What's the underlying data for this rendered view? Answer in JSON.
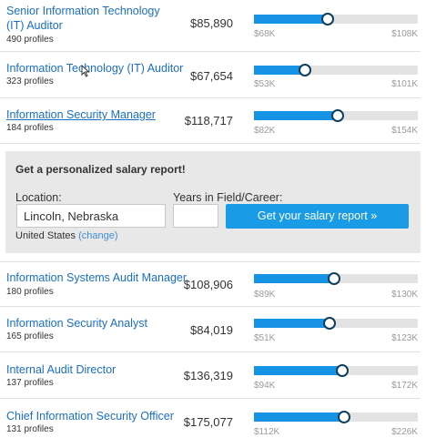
{
  "jobs_top": [
    {
      "title": "Senior Information Technology (IT) Auditor",
      "profiles": "490 profiles",
      "salary": "$85,890",
      "min": "$68K",
      "max": "$108K",
      "level": 0.45
    },
    {
      "title": "Information Technology (IT) Auditor",
      "profiles": "323 profiles",
      "salary": "$67,654",
      "min": "$53K",
      "max": "$101K",
      "level": 0.31
    },
    {
      "title": "Information Security Manager",
      "profiles": "184 profiles",
      "salary": "$118,717",
      "min": "$82K",
      "max": "$154K",
      "level": 0.51
    }
  ],
  "report": {
    "title": "Get a personalized salary report!",
    "location_label": "Location:",
    "location_value": "Lincoln, Nebraska",
    "years_label": "Years in Field/Career:",
    "years_value": "",
    "button_label": "Get your salary report »",
    "country": "United States",
    "change_label": "(change)"
  },
  "jobs_bottom": [
    {
      "title": "Information Systems Audit Manager",
      "profiles": "180 profiles",
      "salary": "$108,906",
      "min": "$89K",
      "max": "$130K",
      "level": 0.49
    },
    {
      "title": "Information Security Analyst",
      "profiles": "165 profiles",
      "salary": "$84,019",
      "min": "$51K",
      "max": "$123K",
      "level": 0.46
    },
    {
      "title": "Internal Audit Director",
      "profiles": "137 profiles",
      "salary": "$136,319",
      "min": "$94K",
      "max": "$172K",
      "level": 0.54
    },
    {
      "title": "Chief Information Security Officer",
      "profiles": "131 profiles",
      "salary": "$175,077",
      "min": "$112K",
      "max": "$226K",
      "level": 0.55
    }
  ]
}
